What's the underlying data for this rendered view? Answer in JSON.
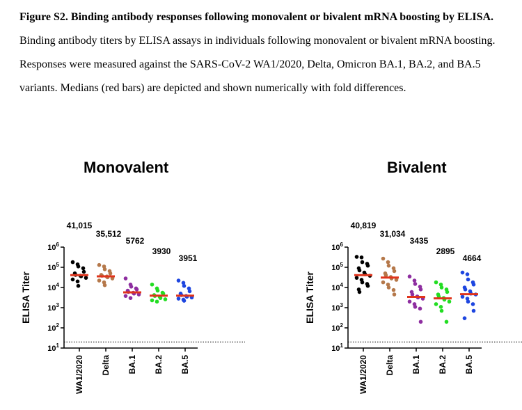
{
  "caption": {
    "label": "Figure S2. Binding antibody responses following monovalent or bivalent mRNA boosting by ELISA.",
    "text": "Binding antibody titers by ELISA assays in individuals following monovalent or bivalent mRNA boosting. Responses were measured against the SARS-CoV-2 WA1/2020, Delta, Omicron BA.1, BA.2, and BA.5 variants. Medians (red bars) are depicted and shown numerically with fold differences."
  },
  "colors": {
    "WA1/2020": "#000000",
    "Delta": "#b5784a",
    "BA.1": "#8e2ea0",
    "BA.2": "#22dd22",
    "BA.5": "#1e46e0",
    "median": "#e0341c"
  },
  "chart_data": [
    {
      "type": "scatter",
      "title": "Monovalent",
      "ylabel": "ELISA Titer",
      "yscale": "log10",
      "ylim": [
        10,
        1000000
      ],
      "yticks": [
        "10^1",
        "10^2",
        "10^3",
        "10^4",
        "10^5",
        "10^6"
      ],
      "limit_of_detection": 20,
      "categories": [
        "WA1/2020",
        "Delta",
        "BA.1",
        "BA.2",
        "BA.5"
      ],
      "median_labels": [
        "41,015",
        "35,512",
        "5762",
        "3930",
        "3951"
      ],
      "medians": [
        41015,
        35512,
        5762,
        3930,
        3951
      ],
      "points": [
        [
          180000,
          140000,
          110000,
          90000,
          60000,
          50000,
          42000,
          38000,
          36000,
          30000,
          25000,
          20000,
          12000
        ],
        [
          130000,
          110000,
          80000,
          65000,
          50000,
          42000,
          38000,
          35000,
          32000,
          28000,
          22000,
          18000,
          13000
        ],
        [
          28000,
          14000,
          11000,
          9000,
          8000,
          7000,
          6000,
          5500,
          5000,
          4500,
          3800,
          3000
        ],
        [
          14000,
          9000,
          7000,
          5500,
          5000,
          4200,
          3800,
          3500,
          3000,
          2600,
          2300,
          2000
        ],
        [
          22000,
          17000,
          12000,
          9000,
          6500,
          5000,
          4200,
          3800,
          3500,
          3200,
          2800,
          2500,
          2200
        ]
      ]
    },
    {
      "type": "scatter",
      "title": "Bivalent",
      "ylabel": "ELISA Titer",
      "yscale": "log10",
      "ylim": [
        10,
        1000000
      ],
      "yticks": [
        "10^1",
        "10^2",
        "10^3",
        "10^4",
        "10^5",
        "10^6"
      ],
      "limit_of_detection": 20,
      "categories": [
        "WA1/2020",
        "Delta",
        "BA.1",
        "BA.2",
        "BA.5"
      ],
      "median_labels": [
        "40,819",
        "31,034",
        "3435",
        "2895",
        "4664"
      ],
      "medians": [
        40819,
        31034,
        3435,
        2895,
        4664
      ],
      "points": [
        [
          330000,
          310000,
          180000,
          150000,
          120000,
          90000,
          70000,
          55000,
          45000,
          38000,
          30000,
          24000,
          18000,
          15000,
          12000,
          8000,
          6000
        ],
        [
          270000,
          180000,
          120000,
          90000,
          65000,
          50000,
          40000,
          33000,
          28000,
          24000,
          18000,
          14000,
          10000,
          7500,
          4500
        ],
        [
          35000,
          22000,
          15000,
          11000,
          8000,
          6000,
          4500,
          3600,
          3200,
          2800,
          2000,
          1500,
          1100,
          900,
          200
        ],
        [
          18000,
          14000,
          10000,
          8000,
          6000,
          4500,
          3500,
          3000,
          2500,
          2000,
          1500,
          1100,
          700,
          200
        ],
        [
          55000,
          45000,
          25000,
          18000,
          14000,
          10000,
          8000,
          6500,
          5000,
          4500,
          3500,
          2800,
          2000,
          1500,
          700,
          300
        ]
      ]
    }
  ]
}
